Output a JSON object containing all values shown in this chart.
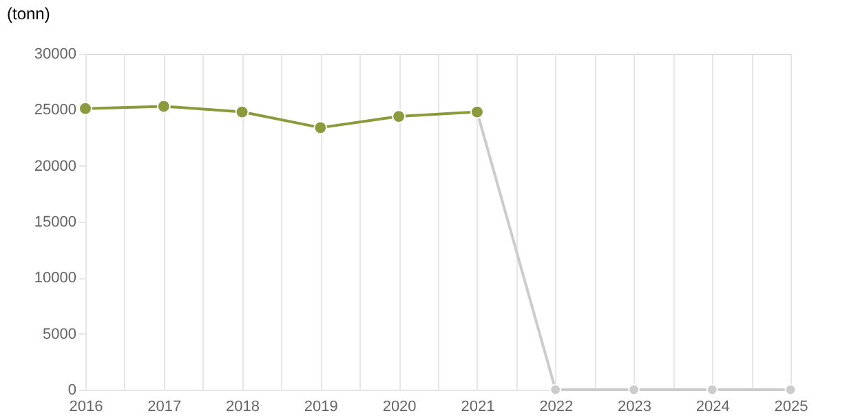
{
  "chart_data": {
    "type": "line",
    "ylabel": "(tonn)",
    "x": [
      2016,
      2017,
      2018,
      2019,
      2020,
      2021,
      2022,
      2023,
      2024,
      2025
    ],
    "series": [
      {
        "color": "#cccccc",
        "values": [
          null,
          null,
          null,
          null,
          null,
          24800,
          0,
          0,
          0,
          0
        ]
      },
      {
        "color": "#8a9a3c",
        "values": [
          25100,
          25300,
          24800,
          23400,
          24400,
          24800,
          null,
          null,
          null,
          null
        ]
      }
    ],
    "xlim": [
      2016,
      2025
    ],
    "xticks": [
      2016,
      {
        "value": 2016.5,
        "label": null
      },
      2017,
      {
        "value": 2017.5,
        "label": null
      },
      2018,
      {
        "value": 2018.5,
        "label": null
      },
      2019,
      {
        "value": 2019.5,
        "label": null
      },
      2020,
      {
        "value": 2020.5,
        "label": null
      },
      2021,
      {
        "value": 2021.5,
        "label": null
      },
      2022,
      {
        "value": 2022.5,
        "label": null
      },
      2023,
      {
        "value": 2023.5,
        "label": null
      },
      2024,
      {
        "value": 2024.5,
        "label": null
      },
      2025
    ],
    "ylim": [
      0,
      30000
    ],
    "yticks": [
      0,
      5000,
      10000,
      15000,
      20000,
      25000,
      30000
    ],
    "grid": "x",
    "marker": "circle",
    "line_style": "solid"
  }
}
